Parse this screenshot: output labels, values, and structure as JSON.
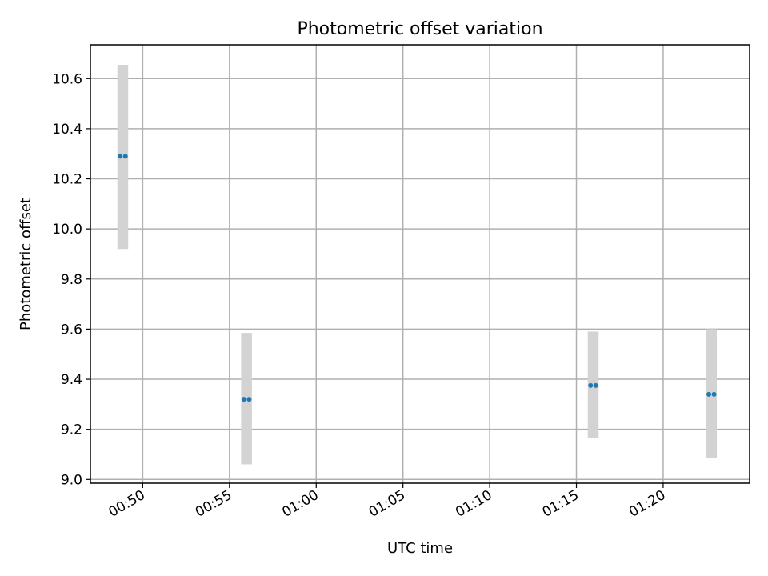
{
  "chart_data": {
    "type": "scatter",
    "title": "Photometric offset variation",
    "xlabel": "UTC time",
    "ylabel": "Photometric offset",
    "x_ticks": [
      "00:50",
      "00:55",
      "01:00",
      "01:05",
      "01:10",
      "01:15",
      "01:20"
    ],
    "y_ticks": [
      "9.0",
      "9.2",
      "9.4",
      "9.6",
      "9.8",
      "10.0",
      "10.2",
      "10.4",
      "10.6"
    ],
    "xlim": [
      "00:46:59",
      "01:24:59"
    ],
    "ylim": [
      8.985,
      10.735
    ],
    "grid": true,
    "errorbar_color": "#d3d3d3",
    "point_color": "#1f77b4",
    "series": [
      {
        "points": [
          {
            "x": "00:48:42",
            "y": 10.29,
            "low": 9.92,
            "high": 10.655
          },
          {
            "x": "00:49:00",
            "y": 10.29,
            "low": 9.92,
            "high": 10.655
          },
          {
            "x": "00:55:50",
            "y": 9.32,
            "low": 9.06,
            "high": 9.585
          },
          {
            "x": "00:56:08",
            "y": 9.32,
            "low": 9.06,
            "high": 9.585
          },
          {
            "x": "01:15:49",
            "y": 9.375,
            "low": 9.165,
            "high": 9.59
          },
          {
            "x": "01:16:07",
            "y": 9.375,
            "low": 9.165,
            "high": 9.59
          },
          {
            "x": "01:22:38",
            "y": 9.34,
            "low": 9.085,
            "high": 9.6
          },
          {
            "x": "01:22:56",
            "y": 9.34,
            "low": 9.085,
            "high": 9.6
          }
        ]
      }
    ]
  }
}
